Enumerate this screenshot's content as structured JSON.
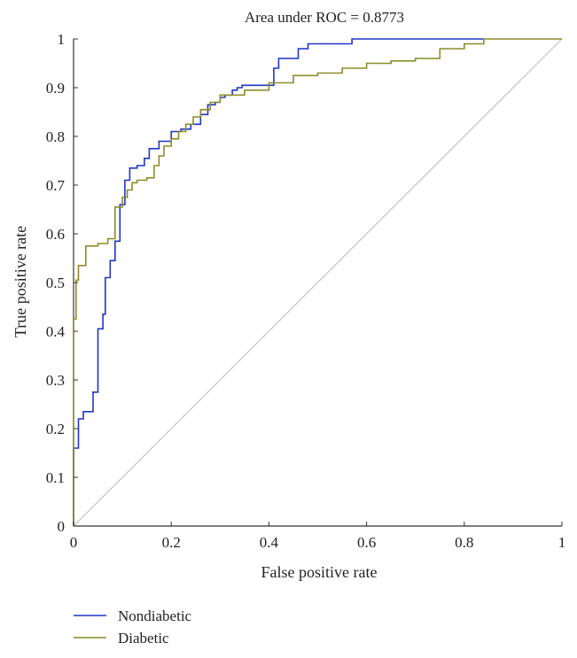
{
  "chart_data": {
    "type": "line",
    "title": "Area under ROC = 0.8773",
    "xlabel": "False positive rate",
    "ylabel": "True positive rate",
    "xlim": [
      0,
      1
    ],
    "ylim": [
      0,
      1
    ],
    "x_ticks": [
      "0",
      "0.2",
      "0.4",
      "0.6",
      "0.8",
      "1"
    ],
    "y_ticks": [
      "0",
      "0.1",
      "0.2",
      "0.3",
      "0.4",
      "0.5",
      "0.6",
      "0.7",
      "0.8",
      "0.9",
      "1"
    ],
    "grid": false,
    "legend_position": "bottom-left",
    "reference_line": {
      "name": "chance",
      "color": "#c8c8c8",
      "x": [
        0,
        1
      ],
      "y": [
        0,
        1
      ]
    },
    "series": [
      {
        "name": "Nondiabetic",
        "color": "#1f35c8",
        "x": [
          0,
          0,
          0.01,
          0.01,
          0.02,
          0.02,
          0.04,
          0.04,
          0.05,
          0.05,
          0.06,
          0.06,
          0.065,
          0.065,
          0.075,
          0.075,
          0.085,
          0.085,
          0.095,
          0.095,
          0.105,
          0.105,
          0.115,
          0.115,
          0.13,
          0.13,
          0.145,
          0.145,
          0.155,
          0.155,
          0.175,
          0.175,
          0.2,
          0.2,
          0.22,
          0.22,
          0.24,
          0.24,
          0.26,
          0.26,
          0.275,
          0.275,
          0.29,
          0.29,
          0.3,
          0.3,
          0.31,
          0.31,
          0.325,
          0.325,
          0.335,
          0.335,
          0.345,
          0.345,
          0.41,
          0.41,
          0.42,
          0.42,
          0.46,
          0.46,
          0.48,
          0.48,
          0.57,
          0.57,
          0.84
        ],
        "y": [
          0,
          0.16,
          0.16,
          0.22,
          0.22,
          0.235,
          0.235,
          0.275,
          0.275,
          0.405,
          0.405,
          0.435,
          0.435,
          0.51,
          0.51,
          0.545,
          0.545,
          0.585,
          0.585,
          0.66,
          0.66,
          0.71,
          0.71,
          0.735,
          0.735,
          0.74,
          0.74,
          0.755,
          0.755,
          0.775,
          0.775,
          0.79,
          0.79,
          0.81,
          0.81,
          0.815,
          0.815,
          0.825,
          0.825,
          0.845,
          0.845,
          0.865,
          0.865,
          0.87,
          0.87,
          0.88,
          0.88,
          0.885,
          0.885,
          0.895,
          0.895,
          0.9,
          0.9,
          0.905,
          0.905,
          0.94,
          0.94,
          0.96,
          0.96,
          0.98,
          0.98,
          0.99,
          0.99,
          1,
          1
        ]
      },
      {
        "name": "Diabetic",
        "color": "#8c8c2a",
        "x": [
          0,
          0,
          0.005,
          0.005,
          0.01,
          0.01,
          0.025,
          0.025,
          0.05,
          0.05,
          0.07,
          0.07,
          0.085,
          0.085,
          0.1,
          0.1,
          0.11,
          0.11,
          0.12,
          0.12,
          0.13,
          0.13,
          0.15,
          0.15,
          0.165,
          0.165,
          0.175,
          0.175,
          0.185,
          0.185,
          0.2,
          0.2,
          0.215,
          0.215,
          0.23,
          0.23,
          0.245,
          0.245,
          0.26,
          0.26,
          0.28,
          0.28,
          0.3,
          0.3,
          0.35,
          0.35,
          0.4,
          0.4,
          0.45,
          0.45,
          0.5,
          0.5,
          0.55,
          0.55,
          0.6,
          0.6,
          0.65,
          0.65,
          0.7,
          0.7,
          0.75,
          0.75,
          0.8,
          0.8,
          0.84,
          0.84,
          1
        ],
        "y": [
          0,
          0.425,
          0.425,
          0.505,
          0.505,
          0.535,
          0.535,
          0.575,
          0.575,
          0.58,
          0.58,
          0.59,
          0.59,
          0.655,
          0.655,
          0.675,
          0.675,
          0.69,
          0.69,
          0.705,
          0.705,
          0.71,
          0.71,
          0.715,
          0.715,
          0.74,
          0.74,
          0.76,
          0.76,
          0.78,
          0.78,
          0.795,
          0.795,
          0.81,
          0.81,
          0.825,
          0.825,
          0.84,
          0.84,
          0.855,
          0.855,
          0.87,
          0.87,
          0.885,
          0.885,
          0.895,
          0.895,
          0.91,
          0.91,
          0.925,
          0.925,
          0.93,
          0.93,
          0.94,
          0.94,
          0.95,
          0.95,
          0.955,
          0.955,
          0.96,
          0.96,
          0.98,
          0.98,
          0.99,
          0.99,
          1,
          1
        ]
      }
    ]
  }
}
